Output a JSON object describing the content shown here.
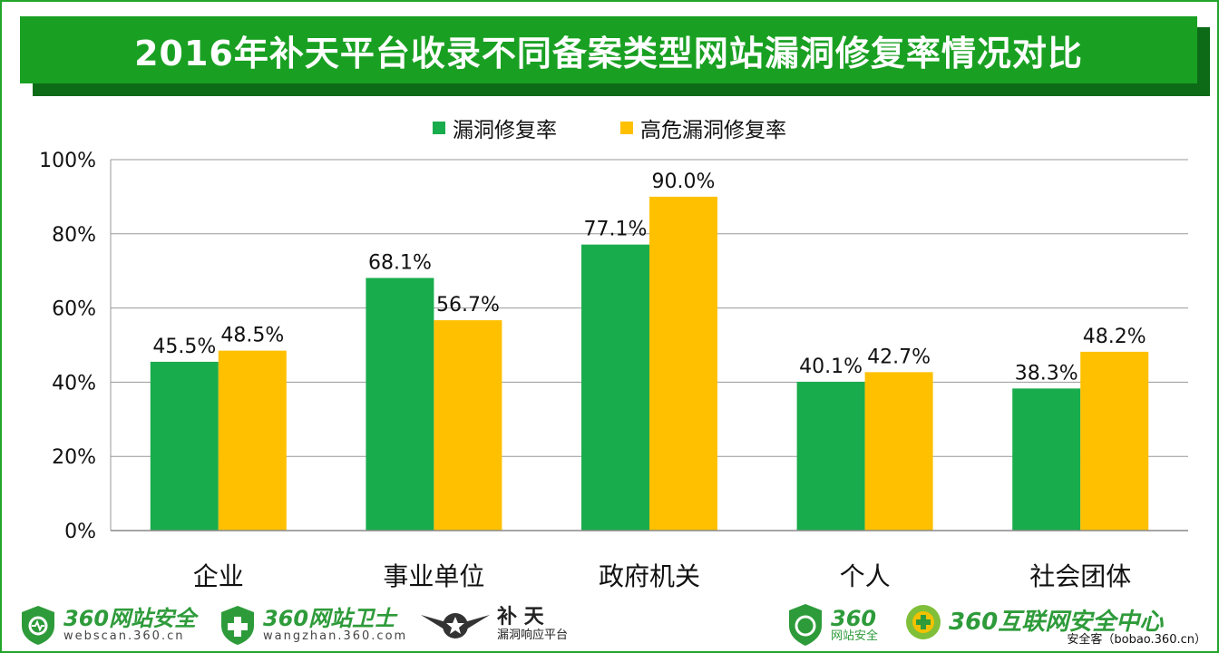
{
  "title": "2016年补天平台收录不同备案类型网站漏洞修复率情况对比",
  "footer": {
    "logo1_main": "360网站安全",
    "logo1_sub": "webscan.360.cn",
    "logo2_main": "360网站卫士",
    "logo2_sub": "wangzhan.360.com",
    "logo3_main": "补 天",
    "logo3_sub": "漏洞响应平台",
    "logo4_main": "360",
    "logo4_sub": "网站安全",
    "logo5_main": "360互联网安全中心",
    "credit": "安全客（bobao.360.cn）"
  },
  "chart_data": {
    "type": "bar",
    "categories": [
      "企业",
      "事业单位",
      "政府机关",
      "个人",
      "社会团体"
    ],
    "series": [
      {
        "name": "漏洞修复率",
        "color": "#19ac4c",
        "values": [
          45.5,
          68.1,
          77.1,
          40.1,
          38.3
        ],
        "labels": [
          "45.5%",
          "68.1%",
          "77.1%",
          "40.1%",
          "38.3%"
        ]
      },
      {
        "name": "高危漏洞修复率",
        "color": "#ffc000",
        "values": [
          48.5,
          56.7,
          90.0,
          42.7,
          48.2
        ],
        "labels": [
          "48.5%",
          "56.7%",
          "90.0%",
          "42.7%",
          "48.2%"
        ]
      }
    ],
    "yticks": [
      "0%",
      "20%",
      "40%",
      "60%",
      "80%",
      "100%"
    ],
    "ylim": [
      0,
      100
    ],
    "grid": true,
    "legend": "top-center"
  }
}
